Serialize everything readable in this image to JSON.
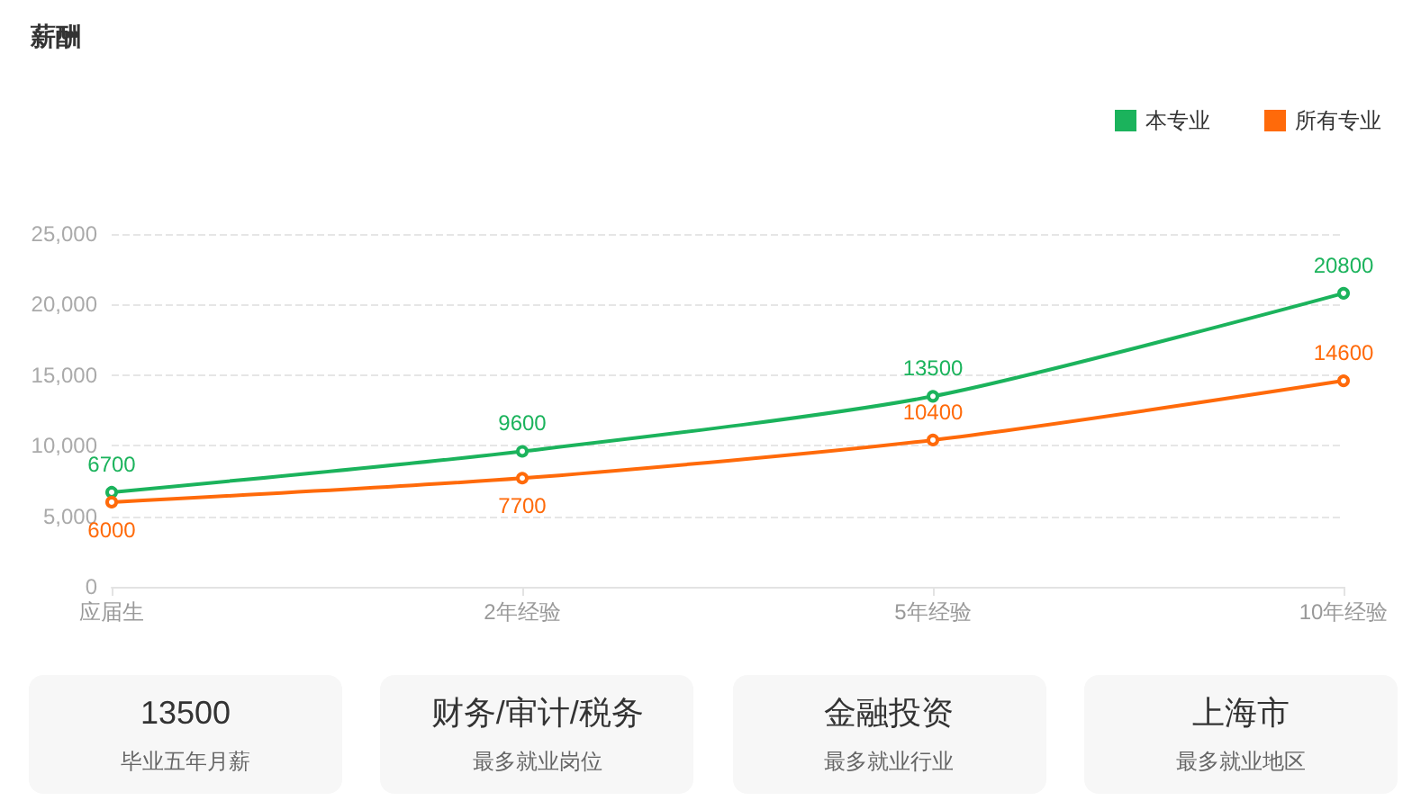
{
  "chart_data": [
    {
      "type": "line",
      "title": "薪酬",
      "categories": [
        "应届生",
        "2年经验",
        "5年经验",
        "10年经验"
      ],
      "series": [
        {
          "name": "本专业",
          "color": "#1bb35c",
          "values": [
            6700,
            9600,
            13500,
            20800
          ]
        },
        {
          "name": "所有专业",
          "color": "#ff6a0a",
          "values": [
            6000,
            7700,
            10400,
            14600
          ]
        }
      ],
      "ylim": [
        0,
        25000
      ],
      "yticks": [
        0,
        {
          "value": 5000,
          "label": "5,000"
        },
        {
          "value": 10000,
          "label": "10,000"
        },
        {
          "value": 15000,
          "label": "15,000"
        },
        {
          "value": 20000,
          "label": "20,000"
        },
        {
          "value": 25000,
          "label": "25,000"
        }
      ],
      "grid": "y",
      "legend": "top right",
      "marker": "circle",
      "data_labels": true
    },
    {
      "type": "other",
      "title": "13500",
      "subtitle": "毕业五年月薪"
    },
    {
      "type": "other",
      "title": "财务/审计/税务",
      "subtitle": "最多就业岗位"
    },
    {
      "type": "other",
      "title": "金融投资",
      "subtitle": "最多就业行业"
    },
    {
      "type": "other",
      "title": "上海市",
      "subtitle": "最多就业地区"
    }
  ]
}
